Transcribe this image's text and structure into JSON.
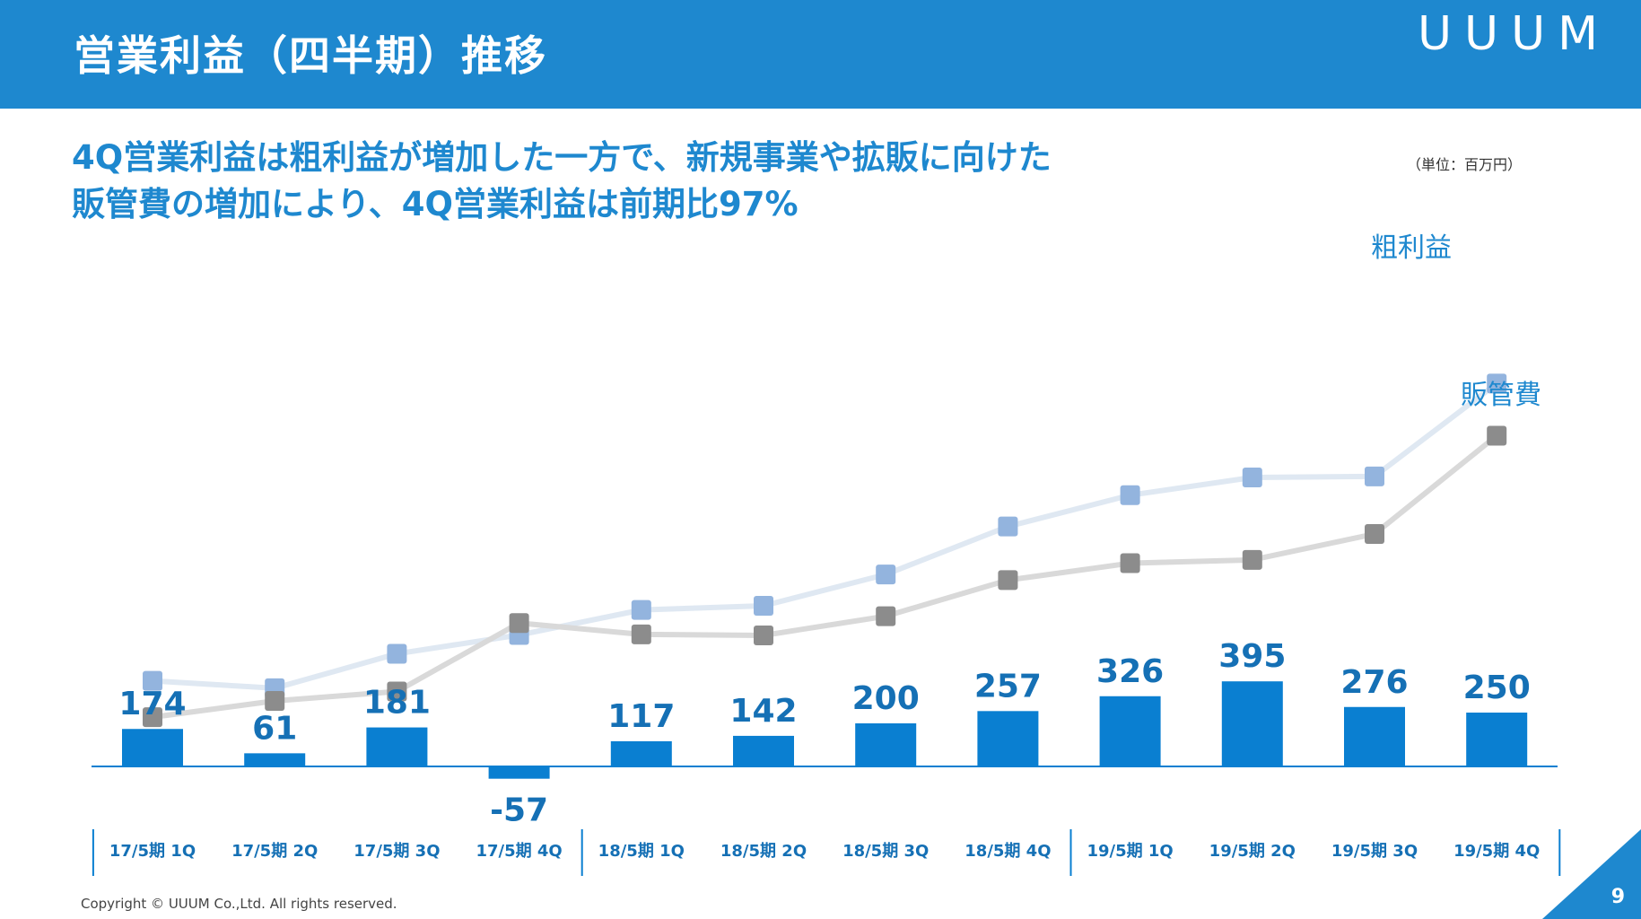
{
  "slide": {
    "title": "営業利益（四半期）推移",
    "logo": "UUUM",
    "headline_line1": "4Q営業利益は粗利益が増加した一方で、新規事業や拡販に向けた",
    "headline_line2": "販管費の増加により、4Q営業利益は前期比97%",
    "unit": "（単位：百万円）",
    "copyright": "Copyright © UUUM Co.,Ltd. All rights reserved.",
    "page_number": "9"
  },
  "colors": {
    "header": "#1e88cf",
    "bar": "#0a7fd1",
    "gross_line": "#dfe8f2",
    "gross_marker": "#93b4de",
    "sga_line": "#d9d9d9",
    "sga_marker": "#8c8c8c"
  },
  "chart_data": {
    "type": "bar",
    "categories": [
      "17/5期 1Q",
      "17/5期 2Q",
      "17/5期 3Q",
      "17/5期 4Q",
      "18/5期 1Q",
      "18/5期 2Q",
      "18/5期 3Q",
      "18/5期 4Q",
      "19/5期 1Q",
      "19/5期 2Q",
      "19/5期 3Q",
      "19/5期 4Q"
    ],
    "series": [
      {
        "name": "営業利益",
        "type": "bar",
        "values": [
          174,
          61,
          181,
          -57,
          117,
          142,
          200,
          257,
          326,
          395,
          276,
          250
        ]
      },
      {
        "name": "粗利益",
        "type": "line",
        "values": [
          410,
          375,
          540,
          630,
          750,
          770,
          920,
          1150,
          1300,
          1385,
          1390,
          1835
        ]
      },
      {
        "name": "販管費",
        "type": "line",
        "values": [
          236,
          314,
          359,
          687,
          633,
          628,
          720,
          893,
          974,
          990,
          1114,
          1585
        ]
      }
    ],
    "value_labels": [
      "174",
      "61",
      "181",
      "-57",
      "117",
      "142",
      "200",
      "257",
      "326",
      "395",
      "276",
      "250"
    ],
    "line_labels": {
      "gross": "粗利益",
      "sga": "販管費"
    },
    "unit": "百万円",
    "ylim": [
      -80,
      1900
    ]
  }
}
